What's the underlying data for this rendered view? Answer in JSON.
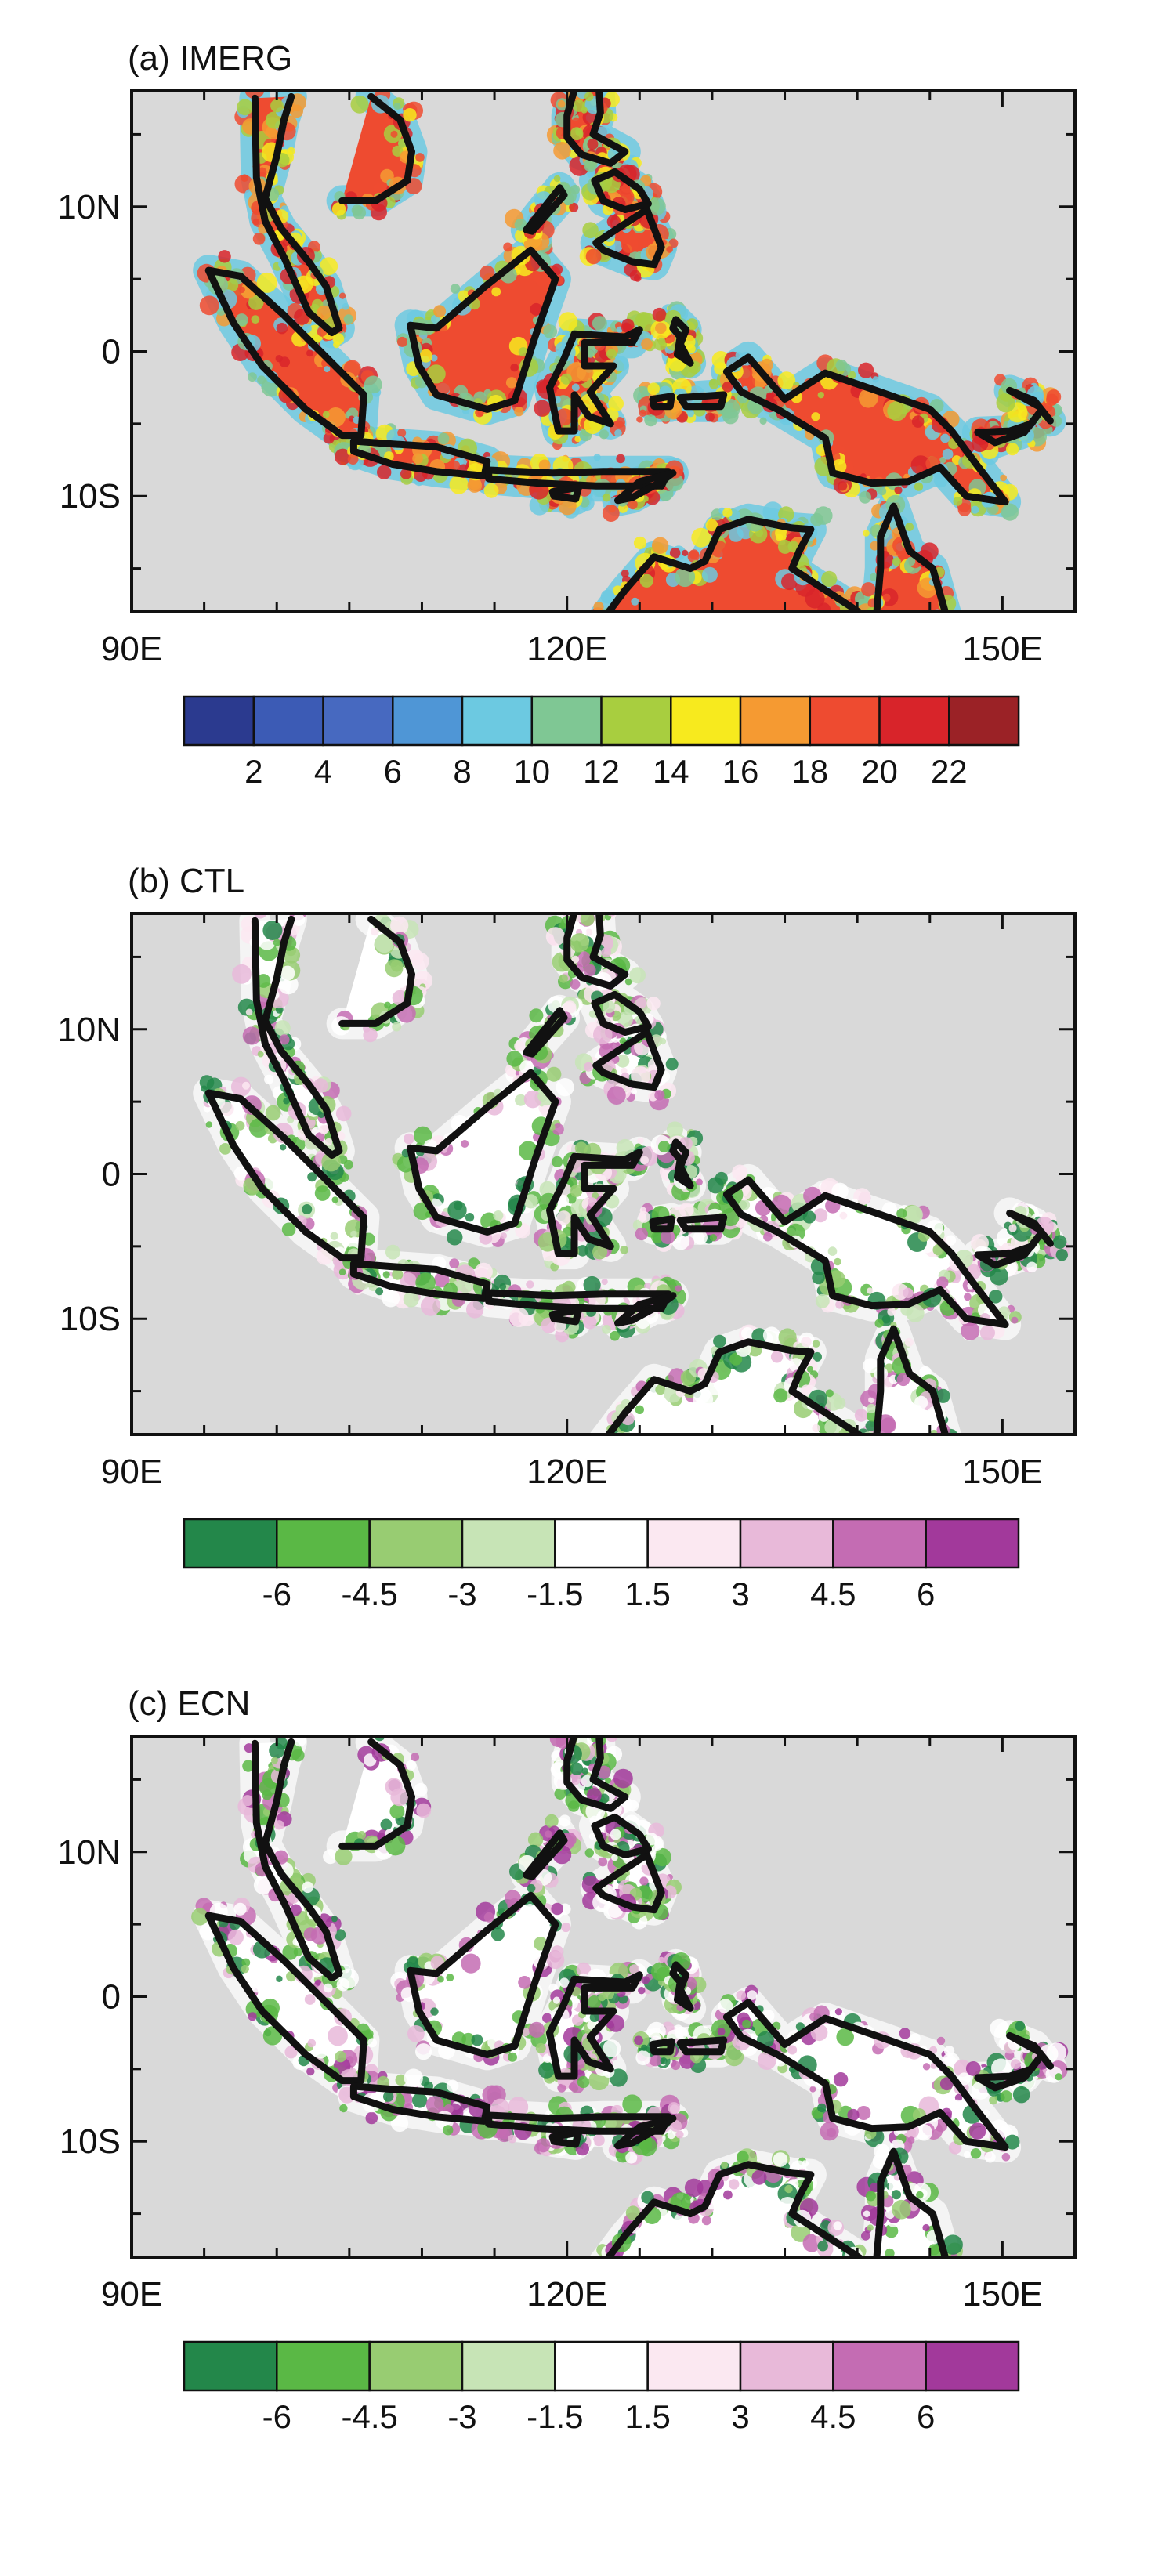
{
  "panels": [
    {
      "title": "(a) IMERG",
      "colorbar": {
        "colors": [
          "#2b3a8f",
          "#3c5bb5",
          "#4769c0",
          "#4f96d6",
          "#6cc9e1",
          "#7fc794",
          "#a8ce3f",
          "#f7ea1e",
          "#f59a32",
          "#ee4b30",
          "#d8242a",
          "#9b2226"
        ],
        "labels": [
          "2",
          "4",
          "6",
          "8",
          "10",
          "12",
          "14",
          "16",
          "18",
          "20",
          "22"
        ]
      },
      "field_palette": [
        "#6cc9e1",
        "#7fc794",
        "#a8ce3f",
        "#f7ea1e",
        "#f59a32",
        "#ee4b30",
        "#d8242a"
      ]
    },
    {
      "title": "(b) CTL",
      "colorbar": {
        "colors": [
          "#23874a",
          "#5ab845",
          "#98cc72",
          "#c7e4b6",
          "#ffffff",
          "#fbe8f1",
          "#e8b9d9",
          "#c46cb3",
          "#a2399b"
        ],
        "labels": [
          "-6",
          "-4.5",
          "-3",
          "-1.5",
          "1.5",
          "3",
          "4.5",
          "6"
        ]
      },
      "field_palette": [
        "#23874a",
        "#5ab845",
        "#98cc72",
        "#c7e4b6",
        "#ffffff",
        "#fbe8f1",
        "#e8b9d9",
        "#c46cb3"
      ]
    },
    {
      "title": "(c) ECN",
      "colorbar": {
        "colors": [
          "#23874a",
          "#5ab845",
          "#98cc72",
          "#c7e4b6",
          "#ffffff",
          "#fbe8f1",
          "#e8b9d9",
          "#c46cb3",
          "#a2399b"
        ],
        "labels": [
          "-6",
          "-4.5",
          "-3",
          "-1.5",
          "1.5",
          "3",
          "4.5",
          "6"
        ]
      },
      "field_palette": [
        "#23874a",
        "#5ab845",
        "#98cc72",
        "#ffffff",
        "#ffffff",
        "#e8b9d9",
        "#c46cb3",
        "#a2399b"
      ]
    }
  ],
  "axes": {
    "lat_labels": [
      "10N",
      "0",
      "10S"
    ],
    "lon_labels": [
      "90E",
      "120E",
      "150E"
    ]
  },
  "map_colors": {
    "ocean": "#d9d9d9",
    "coast": "#111111"
  }
}
